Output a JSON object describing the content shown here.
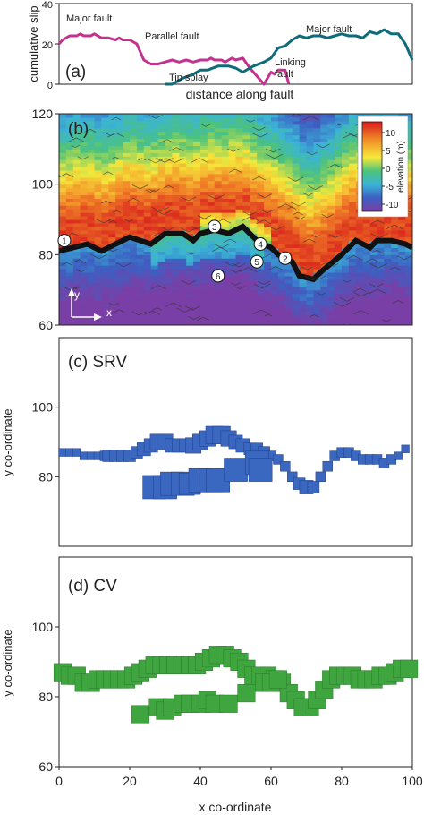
{
  "figure": {
    "x_axis_label": "x co-ordinate",
    "y_axis_label": "y co-ordinate"
  },
  "chart_data": [
    {
      "panel": "(a)",
      "type": "line",
      "xlabel": "distance along fault",
      "ylabel": "cumulative slip",
      "ylim": [
        0,
        40
      ],
      "y_ticks": [
        0,
        20,
        40
      ],
      "x_range": [
        0,
        100
      ],
      "annotations": [
        "Major fault",
        "Parallel fault",
        "Major fault",
        "Linking fault",
        "Tip splay"
      ],
      "series": [
        {
          "name": "Major fault",
          "color": "#c4328f",
          "x": [
            0,
            1,
            3,
            5,
            6,
            7,
            9,
            10,
            12,
            14,
            16,
            17,
            18,
            20,
            22,
            24,
            26,
            28,
            30,
            32,
            34,
            36,
            38,
            40,
            42,
            43,
            44,
            46,
            47,
            48,
            49,
            50,
            52,
            54,
            56,
            58,
            60,
            61,
            62,
            64,
            65
          ],
          "y": [
            20,
            22,
            24,
            24,
            25,
            24,
            24,
            25,
            23,
            23,
            22,
            23,
            22,
            22,
            20,
            12,
            10,
            10,
            11,
            12,
            11,
            12,
            11,
            12,
            12,
            13,
            12,
            12,
            11,
            12,
            13,
            12,
            13,
            8,
            4,
            0,
            6,
            5,
            7,
            7,
            0
          ]
        },
        {
          "name": "Linking fault",
          "color": "#0e6b7a",
          "x": [
            30,
            32,
            35,
            38,
            40,
            42,
            45,
            48,
            50,
            52,
            55,
            58,
            60,
            62,
            64,
            66,
            68,
            70,
            72,
            74,
            76,
            78,
            80,
            82,
            84,
            86,
            88,
            90,
            92,
            94,
            96,
            98,
            100
          ],
          "y": [
            0,
            0,
            3,
            5,
            7,
            7,
            9,
            9,
            8,
            6,
            9,
            11,
            13,
            18,
            19,
            22,
            24,
            23,
            24,
            24,
            23,
            24,
            25,
            24,
            24,
            23,
            26,
            25,
            27,
            25,
            25,
            20,
            12
          ]
        }
      ]
    },
    {
      "panel": "(b)",
      "type": "heatmap",
      "xlim": [
        0,
        100
      ],
      "ylim": [
        60,
        120
      ],
      "x_ticks": [],
      "y_ticks": [
        60,
        80,
        100,
        120
      ],
      "colorbar": {
        "label": "elevation (m)",
        "ticks": [
          10,
          5,
          0,
          -5,
          -10
        ],
        "range": [
          -12,
          13
        ]
      },
      "fault_trace": {
        "x": [
          0,
          8,
          12,
          20,
          26,
          30,
          35,
          38,
          40,
          44,
          48,
          52,
          56,
          60,
          62,
          66,
          68,
          72,
          74,
          80,
          84,
          88,
          90,
          94,
          98,
          100
        ],
        "y": [
          81,
          83,
          81,
          85,
          83,
          86,
          86,
          84,
          86,
          87,
          86,
          88,
          84,
          82,
          80,
          78,
          74,
          73,
          75,
          80,
          84,
          82,
          84,
          84,
          83,
          82
        ]
      },
      "numbered_markers": [
        {
          "label": "1",
          "x": 1.5,
          "y": 84
        },
        {
          "label": "2",
          "x": 64,
          "y": 79
        },
        {
          "label": "3",
          "x": 44,
          "y": 88
        },
        {
          "label": "4",
          "x": 57,
          "y": 83
        },
        {
          "label": "5",
          "x": 56,
          "y": 78
        },
        {
          "label": "6",
          "x": 45,
          "y": 74
        }
      ],
      "axis_arrows": [
        "y",
        "x"
      ]
    },
    {
      "panel": "(c) SRV",
      "type": "scatter",
      "xlim": [
        0,
        100
      ],
      "ylim": [
        60,
        120
      ],
      "x_ticks": [],
      "y_ticks": [
        80,
        100
      ],
      "color": "#3a67c0",
      "points": [
        [
          1,
          87,
          2
        ],
        [
          3,
          87,
          2
        ],
        [
          5,
          87,
          2
        ],
        [
          7,
          86,
          2
        ],
        [
          9,
          86,
          2
        ],
        [
          11,
          86,
          2
        ],
        [
          13,
          86,
          2.5
        ],
        [
          14,
          86,
          3
        ],
        [
          16,
          86,
          3
        ],
        [
          18,
          86,
          3
        ],
        [
          20,
          86,
          3
        ],
        [
          22,
          87,
          3
        ],
        [
          24,
          88,
          3.5
        ],
        [
          26,
          89,
          3.5
        ],
        [
          28,
          90,
          4
        ],
        [
          30,
          90,
          4
        ],
        [
          32,
          89,
          3.5
        ],
        [
          34,
          89,
          3.5
        ],
        [
          36,
          89,
          3.5
        ],
        [
          38,
          89,
          4
        ],
        [
          40,
          90,
          4
        ],
        [
          42,
          91,
          4
        ],
        [
          44,
          92,
          4.5
        ],
        [
          46,
          92,
          4.5
        ],
        [
          48,
          91,
          4
        ],
        [
          50,
          90,
          3.5
        ],
        [
          52,
          89,
          3.5
        ],
        [
          54,
          88,
          3
        ],
        [
          56,
          88,
          3
        ],
        [
          58,
          87,
          3
        ],
        [
          60,
          86,
          2.5
        ],
        [
          62,
          85,
          2.5
        ],
        [
          64,
          83,
          2.5
        ],
        [
          66,
          80,
          2.5
        ],
        [
          68,
          78,
          3
        ],
        [
          70,
          77,
          3.5
        ],
        [
          72,
          77,
          3
        ],
        [
          74,
          80,
          2.5
        ],
        [
          76,
          83,
          2.5
        ],
        [
          78,
          86,
          2.5
        ],
        [
          80,
          87,
          2.5
        ],
        [
          82,
          87,
          2.5
        ],
        [
          84,
          86,
          2.5
        ],
        [
          86,
          85,
          2.5
        ],
        [
          88,
          85,
          2.5
        ],
        [
          90,
          85,
          2.5
        ],
        [
          92,
          84,
          2.5
        ],
        [
          94,
          85,
          2.5
        ],
        [
          96,
          86,
          2
        ],
        [
          98,
          88,
          2
        ],
        [
          27,
          77,
          6
        ],
        [
          30,
          77,
          6
        ],
        [
          32,
          78,
          6
        ],
        [
          35,
          78,
          6
        ],
        [
          37,
          78,
          5.5
        ],
        [
          40,
          79,
          6
        ],
        [
          43,
          79,
          6
        ],
        [
          45,
          79,
          6
        ],
        [
          50,
          82,
          6
        ],
        [
          56,
          84,
          6
        ],
        [
          57,
          82,
          6
        ]
      ]
    },
    {
      "panel": "(d) CV",
      "type": "scatter",
      "xlabel": "x co-ordinate",
      "xlim": [
        0,
        100
      ],
      "ylim": [
        60,
        120
      ],
      "x_ticks": [
        0,
        20,
        40,
        60,
        80,
        100
      ],
      "y_ticks": [
        60,
        80,
        100
      ],
      "color": "#3fa53f",
      "points": [
        [
          1,
          87,
          4.5
        ],
        [
          3,
          86,
          4.5
        ],
        [
          5,
          86,
          4.5
        ],
        [
          7,
          84,
          4.5
        ],
        [
          9,
          84,
          4.5
        ],
        [
          11,
          85,
          4.5
        ],
        [
          13,
          85,
          4.5
        ],
        [
          15,
          85,
          4.5
        ],
        [
          17,
          85,
          4.5
        ],
        [
          19,
          85,
          4.5
        ],
        [
          21,
          86,
          4.5
        ],
        [
          23,
          87,
          4.5
        ],
        [
          25,
          88,
          4.5
        ],
        [
          27,
          89,
          4.5
        ],
        [
          29,
          89,
          4.5
        ],
        [
          31,
          89,
          4.5
        ],
        [
          33,
          89,
          4.5
        ],
        [
          35,
          89,
          4.5
        ],
        [
          37,
          89,
          4.5
        ],
        [
          39,
          89,
          4.5
        ],
        [
          41,
          90,
          4.5
        ],
        [
          43,
          91,
          4.5
        ],
        [
          45,
          92,
          4.5
        ],
        [
          47,
          92,
          4.5
        ],
        [
          49,
          91,
          4.5
        ],
        [
          51,
          90,
          4.5
        ],
        [
          53,
          88,
          4.5
        ],
        [
          55,
          86,
          4.5
        ],
        [
          57,
          86,
          4.5
        ],
        [
          59,
          86,
          4.5
        ],
        [
          61,
          85,
          4.5
        ],
        [
          63,
          84,
          4.5
        ],
        [
          65,
          81,
          4.5
        ],
        [
          67,
          79,
          4.5
        ],
        [
          69,
          77,
          4.5
        ],
        [
          71,
          77,
          4.5
        ],
        [
          73,
          79,
          4.5
        ],
        [
          75,
          82,
          4.5
        ],
        [
          77,
          85,
          4.5
        ],
        [
          79,
          86,
          4.5
        ],
        [
          81,
          86,
          4.5
        ],
        [
          83,
          86,
          4.5
        ],
        [
          85,
          85,
          4.5
        ],
        [
          87,
          85,
          4.5
        ],
        [
          89,
          85,
          4.5
        ],
        [
          91,
          86,
          4.5
        ],
        [
          93,
          86,
          4.5
        ],
        [
          95,
          87,
          4.5
        ],
        [
          97,
          88,
          4.5
        ],
        [
          99,
          88,
          4.5
        ],
        [
          23,
          75,
          4.5
        ],
        [
          28,
          77,
          4.5
        ],
        [
          30,
          76,
          4.5
        ],
        [
          32,
          77,
          4.5
        ],
        [
          35,
          78,
          4.5
        ],
        [
          37,
          78,
          4.5
        ],
        [
          40,
          78,
          4.5
        ],
        [
          42,
          79,
          4.5
        ],
        [
          44,
          78,
          4.5
        ],
        [
          48,
          78,
          4.5
        ],
        [
          53,
          81,
          4.5
        ],
        [
          58,
          84,
          4.5
        ],
        [
          60,
          84,
          4.5
        ],
        [
          62,
          85,
          4.5
        ]
      ]
    }
  ]
}
